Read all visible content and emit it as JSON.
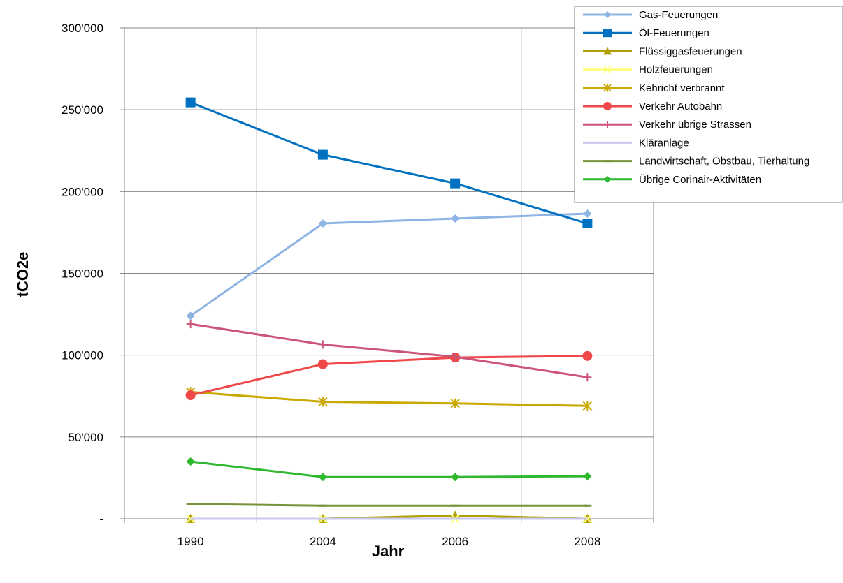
{
  "chart_data": {
    "type": "line",
    "title": "",
    "xlabel": "Jahr",
    "ylabel": "tCO2e",
    "categories": [
      "1990",
      "2004",
      "2006",
      "2008"
    ],
    "ylim": [
      0,
      300000
    ],
    "yticks": [
      0,
      50000,
      100000,
      150000,
      200000,
      250000,
      300000
    ],
    "ytick_labels": [
      "-",
      "50'000",
      "100'000",
      "150'000",
      "200'000",
      "250'000",
      "300'000"
    ],
    "grid": true,
    "legend_position": "top-right",
    "series": [
      {
        "name": "Gas-Feuerungen",
        "color": "#8db4e2",
        "marker": "diamond",
        "values": [
          124000,
          180500,
          183500,
          186500
        ]
      },
      {
        "name": "Öl-Feuerungen",
        "color": "#0070c0",
        "marker": "square",
        "values": [
          254500,
          222500,
          205000,
          180500
        ]
      },
      {
        "name": "Flüssiggasfeuerungen",
        "color": "#b2a000",
        "marker": "triangle",
        "values": [
          0,
          0,
          2000,
          0
        ]
      },
      {
        "name": "Holzfeuerungen",
        "color": "#ffff80",
        "marker": "x",
        "values": [
          0,
          0,
          0,
          0
        ]
      },
      {
        "name": "Kehricht verbrannt",
        "color": "#c9a800",
        "marker": "star",
        "values": [
          77500,
          71500,
          70500,
          69000
        ]
      },
      {
        "name": "Verkehr Autobahn",
        "color": "#f04848",
        "marker": "circle",
        "values": [
          75500,
          94500,
          98500,
          99500
        ]
      },
      {
        "name": "Verkehr übrige Strassen",
        "color": "#cc5577",
        "marker": "plus",
        "values": [
          119000,
          106500,
          99000,
          86500
        ]
      },
      {
        "name": "Kläranlage",
        "color": "#c8c8f0",
        "marker": "none",
        "values": [
          0,
          0,
          0,
          0
        ]
      },
      {
        "name": "Landwirtschaft, Obstbau, Tierhaltung",
        "color": "#77933c",
        "marker": "dash",
        "values": [
          9000,
          8000,
          8000,
          8000
        ]
      },
      {
        "name": "Übrige Corinair-Aktivitäten",
        "color": "#2eb82e",
        "marker": "diamond",
        "values": [
          35000,
          25500,
          25500,
          26000
        ]
      }
    ]
  }
}
